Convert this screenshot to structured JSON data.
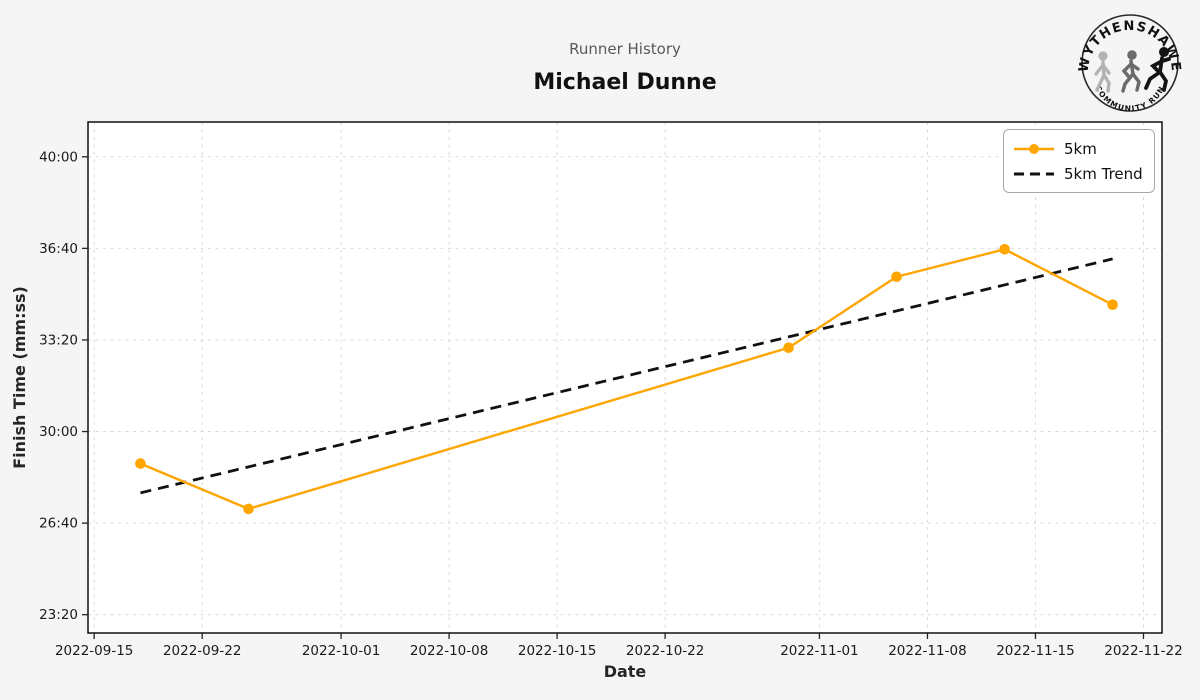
{
  "header": {
    "subtitle": "Runner History",
    "title": "Michael Dunne"
  },
  "logo": {
    "top_text": "WYTHENSHAWE",
    "bottom_text": "COMMUNITY RUN"
  },
  "colors": {
    "figure_background": "#f5f5f5",
    "plot_background": "#ffffff",
    "series_5km": "#FFA500",
    "trend": "#111111",
    "grid": "#d9d9d9",
    "spine": "#000000",
    "subtitle_text": "#595959",
    "tick_text": "#1a1a1a"
  },
  "chart_data": {
    "type": "line",
    "title": "Runner History",
    "subtitle": "Michael Dunne",
    "xlabel": "Date",
    "ylabel": "Finish Time (mm:ss)",
    "grid": true,
    "legend_position": "upper right",
    "x_epoch": "2022-09-01",
    "x_domain_days": [
      13.6,
      83.2
    ],
    "y_domain_seconds": [
      1360,
      2476
    ],
    "x_ticks": [
      "2022-09-15",
      "2022-09-22",
      "2022-10-01",
      "2022-10-08",
      "2022-10-15",
      "2022-10-22",
      "2022-11-01",
      "2022-11-08",
      "2022-11-15",
      "2022-11-22"
    ],
    "y_ticks": [
      {
        "label": "40:00",
        "seconds": 2400
      },
      {
        "label": "36:40",
        "seconds": 2200
      },
      {
        "label": "33:20",
        "seconds": 2000
      },
      {
        "label": "30:00",
        "seconds": 1800
      },
      {
        "label": "26:40",
        "seconds": 1600
      },
      {
        "label": "23:20",
        "seconds": 1400
      }
    ],
    "series": [
      {
        "name": "5km",
        "style": "solid",
        "marker": "circle",
        "color": "#FFA500",
        "points": [
          {
            "date": "2022-09-18",
            "time": "28:50",
            "seconds": 1730
          },
          {
            "date": "2022-09-25",
            "time": "27:11",
            "seconds": 1631
          },
          {
            "date": "2022-10-30",
            "time": "33:03",
            "seconds": 1983
          },
          {
            "date": "2022-11-06",
            "time": "35:38",
            "seconds": 2138
          },
          {
            "date": "2022-11-13",
            "time": "36:38",
            "seconds": 2198
          },
          {
            "date": "2022-11-20",
            "time": "34:37",
            "seconds": 2077
          }
        ]
      },
      {
        "name": "5km Trend",
        "style": "dashed",
        "marker": "none",
        "color": "#111111",
        "points": [
          {
            "date": "2022-09-18",
            "time": "27:46",
            "seconds": 1666
          },
          {
            "date": "2022-11-20",
            "time": "36:17",
            "seconds": 2177
          }
        ]
      }
    ]
  }
}
